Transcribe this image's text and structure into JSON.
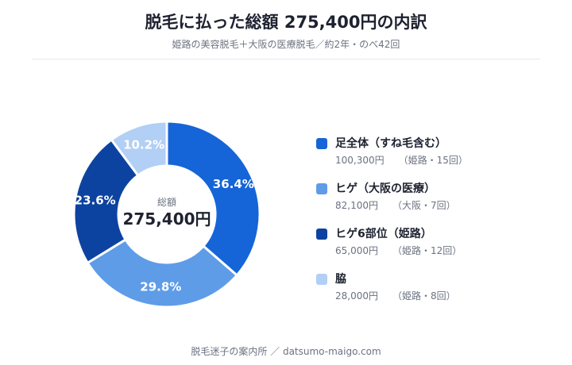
{
  "header": {
    "title": "脱毛に払った総額 275,400円の内訳",
    "subtitle": "姫路の美容脱毛＋大阪の医療脱毛／約2年・のべ42回"
  },
  "center": {
    "label": "総額",
    "total": "275,400円"
  },
  "colors": {
    "slice_1": "#1565d8",
    "slice_2": "#5e9ce8",
    "slice_3": "#0d43a0",
    "slice_4": "#b2cff5"
  },
  "chart_data": {
    "type": "pie",
    "donut": true,
    "categories": [
      "足全体（すね毛含む）",
      "ヒゲ（大阪の医療）",
      "ヒゲ6部位（姫路）",
      "脇"
    ],
    "values": [
      100300,
      82100,
      65000,
      28000
    ],
    "percent_labels": [
      "36.4%",
      "29.8%",
      "23.6%",
      "10.2%"
    ],
    "amount_labels": [
      "100,300円",
      "82,100円",
      "65,000円",
      "28,000円"
    ],
    "notes": [
      "（姫路・15回）",
      "（大阪・7回）",
      "（姫路・12回）",
      "（姫路・8回）"
    ],
    "unit": "円",
    "legend_position": "right"
  },
  "footer": {
    "text": "脱毛迷子の案内所 ／ datsumo-maigo.com"
  }
}
